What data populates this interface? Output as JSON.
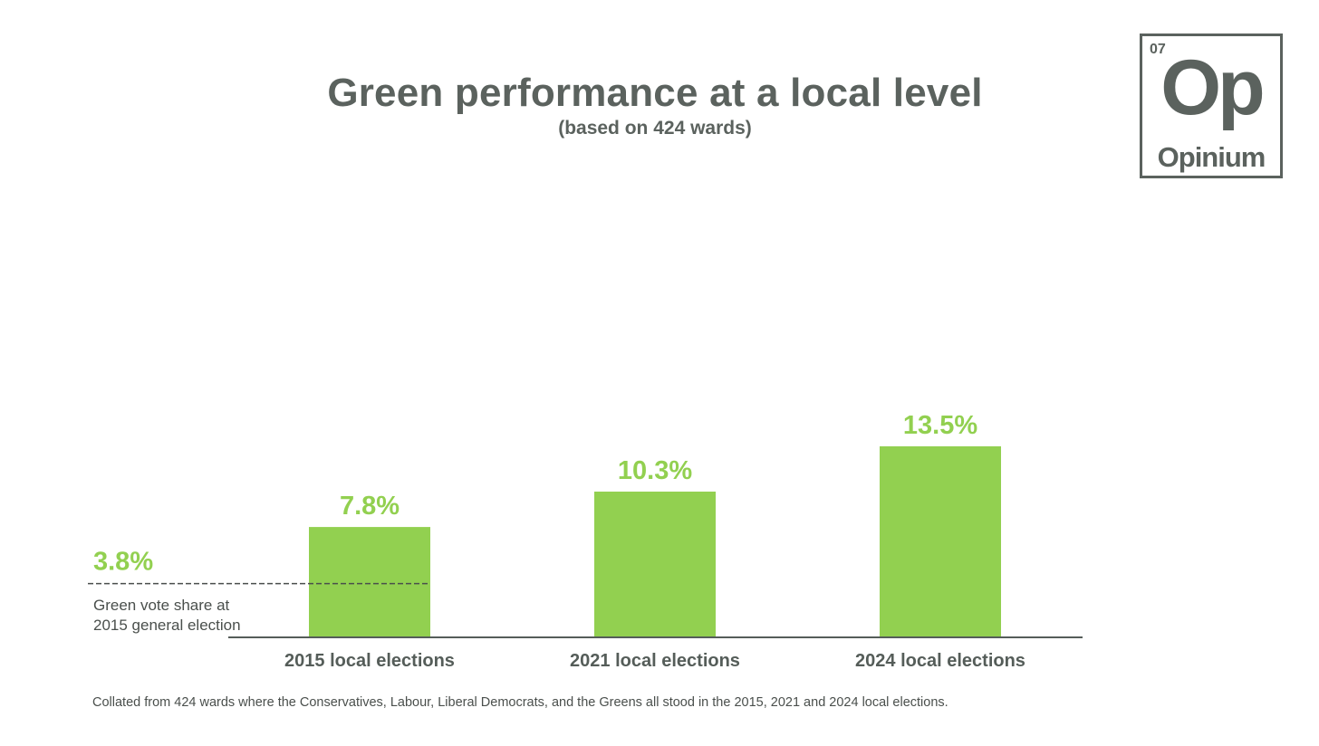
{
  "header": {
    "title": "Green performance at a local level",
    "subtitle": "(based on 424 wards)"
  },
  "logo": {
    "number": "07",
    "symbol": "Op",
    "name": "Opinium"
  },
  "chart_data": {
    "type": "bar",
    "categories": [
      "2015 local elections",
      "2021 local elections",
      "2024 local elections"
    ],
    "values": [
      7.8,
      10.3,
      13.5
    ],
    "value_labels": [
      "7.8%",
      "10.3%",
      "13.5%"
    ],
    "ylim": [
      0,
      13.5
    ],
    "bar_color": "#92d050",
    "label_color": "#92d050",
    "reference_line": {
      "value": 3.8,
      "value_label": "3.8%",
      "label": "Green vote share at 2015 general election",
      "label_lines": [
        "Green vote share at",
        "2015 general election"
      ],
      "style": "dashed"
    },
    "grid": false,
    "legend": "none"
  },
  "footnote": "Collated from 424 wards where the Conservatives, Labour, Liberal Democrats, and the Greens all stood in the 2015, 2021 and 2024 local elections."
}
